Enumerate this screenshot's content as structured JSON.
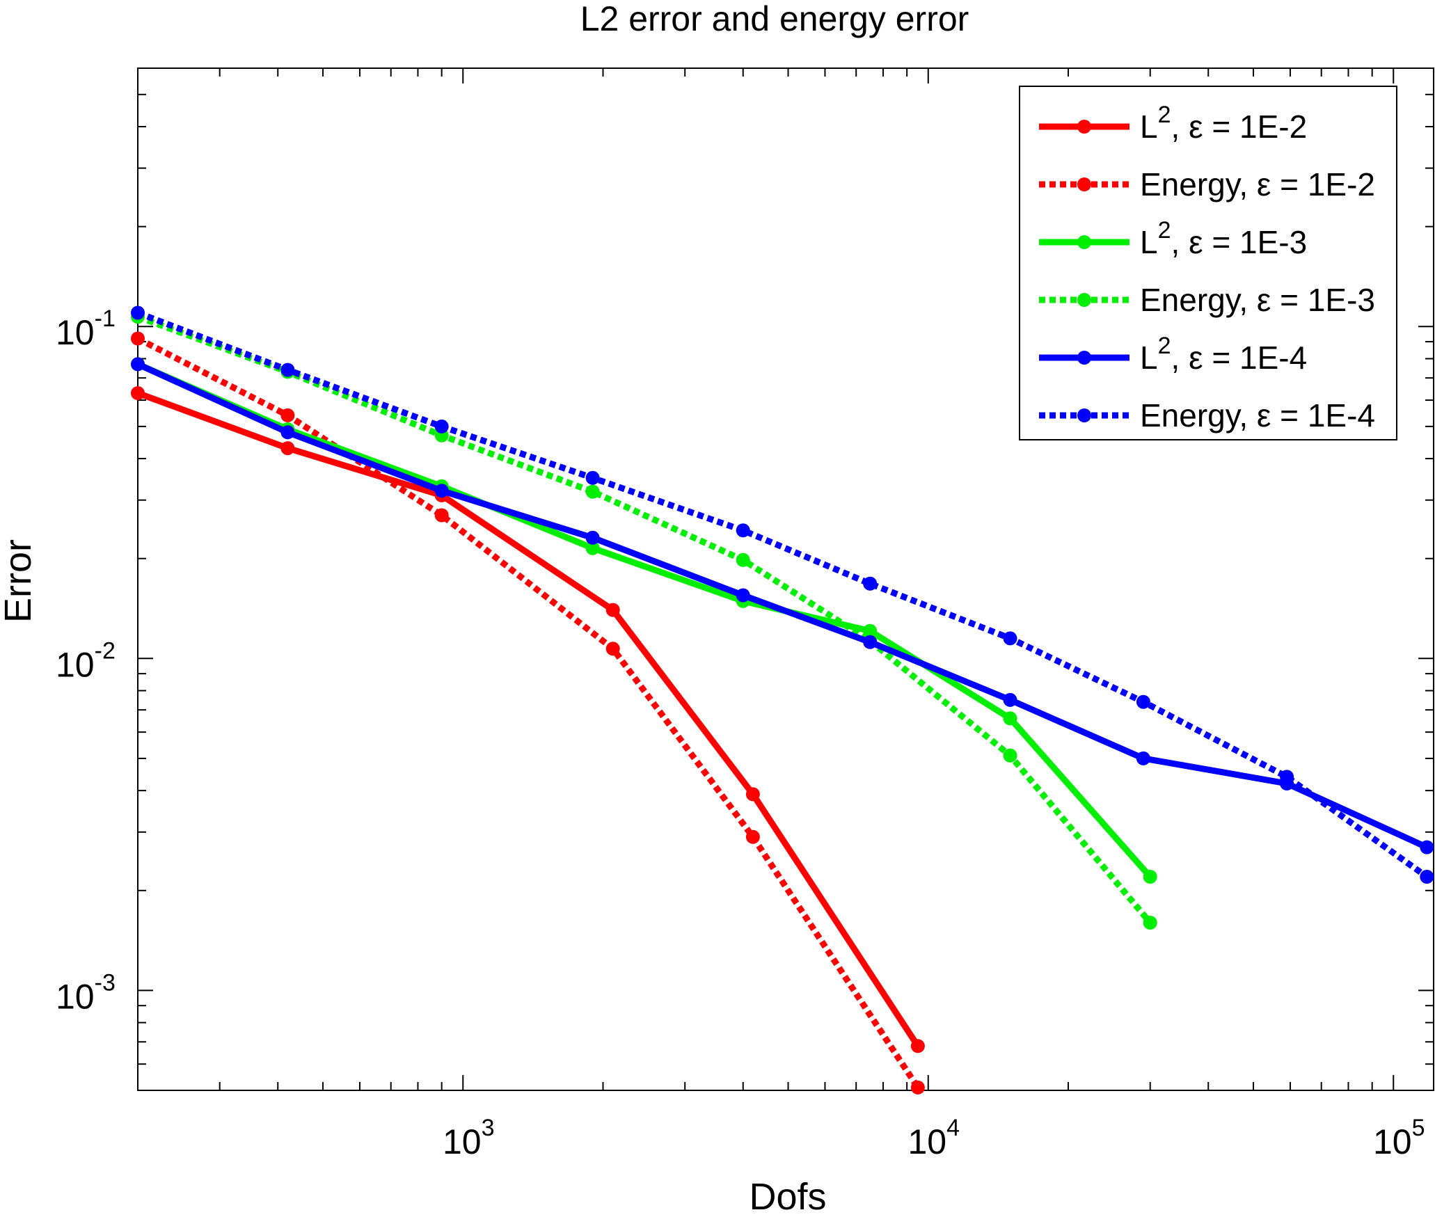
{
  "chart_data": {
    "type": "line",
    "title": "L2 error and energy error",
    "xlabel": "Dofs",
    "ylabel": "Error",
    "xscale": "log",
    "yscale": "log",
    "xlim": [
      200,
      122000
    ],
    "ylim": [
      0.0005,
      0.6
    ],
    "grid": false,
    "legend_position": "top-right",
    "x_ticks": [
      {
        "value": 1000,
        "base": "10",
        "exp": "3"
      },
      {
        "value": 10000,
        "base": "10",
        "exp": "4"
      },
      {
        "value": 100000,
        "base": "10",
        "exp": "5"
      }
    ],
    "y_ticks": [
      {
        "value": 0.001,
        "base": "10",
        "exp": "-3"
      },
      {
        "value": 0.01,
        "base": "10",
        "exp": "-2"
      },
      {
        "value": 0.1,
        "base": "10",
        "exp": "-1"
      }
    ],
    "series": [
      {
        "name": "L², ε = 1E-2",
        "legend_main": "L",
        "legend_sup": "2",
        "legend_rest": ", ε = 1E-2",
        "color": "#ff0000",
        "style": "solid",
        "x": [
          200,
          420,
          900,
          2100,
          4200,
          9500
        ],
        "y": [
          0.063,
          0.043,
          0.031,
          0.014,
          0.0039,
          0.00068
        ]
      },
      {
        "name": "Energy, ε = 1E-2",
        "legend_main": "Energy, ε = 1E-2",
        "legend_sup": "",
        "legend_rest": "",
        "color": "#ff0000",
        "style": "dotted",
        "x": [
          200,
          420,
          900,
          2100,
          4200,
          9500
        ],
        "y": [
          0.092,
          0.054,
          0.027,
          0.0107,
          0.0029,
          0.00051
        ]
      },
      {
        "name": "L², ε = 1E-3",
        "legend_main": "L",
        "legend_sup": "2",
        "legend_rest": ", ε = 1E-3",
        "color": "#00ee00",
        "style": "solid",
        "x": [
          200,
          420,
          900,
          1900,
          4000,
          7500,
          15000,
          30000
        ],
        "y": [
          0.077,
          0.049,
          0.033,
          0.0215,
          0.0149,
          0.0121,
          0.0066,
          0.0022
        ]
      },
      {
        "name": "Energy, ε = 1E-3",
        "legend_main": "Energy, ε = 1E-3",
        "legend_sup": "",
        "legend_rest": "",
        "color": "#00ee00",
        "style": "dotted",
        "x": [
          200,
          420,
          900,
          1900,
          4000,
          7500,
          15000,
          30000
        ],
        "y": [
          0.107,
          0.073,
          0.047,
          0.0318,
          0.0198,
          0.0113,
          0.0051,
          0.0016
        ]
      },
      {
        "name": "L², ε = 1E-4",
        "legend_main": "L",
        "legend_sup": "2",
        "legend_rest": ", ε = 1E-4",
        "color": "#0000ff",
        "style": "solid",
        "x": [
          200,
          420,
          900,
          1900,
          4000,
          7500,
          15000,
          29000,
          59000,
          118000
        ],
        "y": [
          0.077,
          0.048,
          0.032,
          0.0231,
          0.0155,
          0.0112,
          0.0075,
          0.005,
          0.0042,
          0.0027
        ]
      },
      {
        "name": "Energy, ε = 1E-4",
        "legend_main": "Energy, ε = 1E-4",
        "legend_sup": "",
        "legend_rest": "",
        "color": "#0000ff",
        "style": "dotted",
        "x": [
          200,
          420,
          900,
          1900,
          4000,
          7500,
          15000,
          29000,
          59000,
          118000
        ],
        "y": [
          0.11,
          0.074,
          0.05,
          0.035,
          0.0243,
          0.0168,
          0.0115,
          0.0074,
          0.0044,
          0.0022
        ]
      }
    ]
  }
}
